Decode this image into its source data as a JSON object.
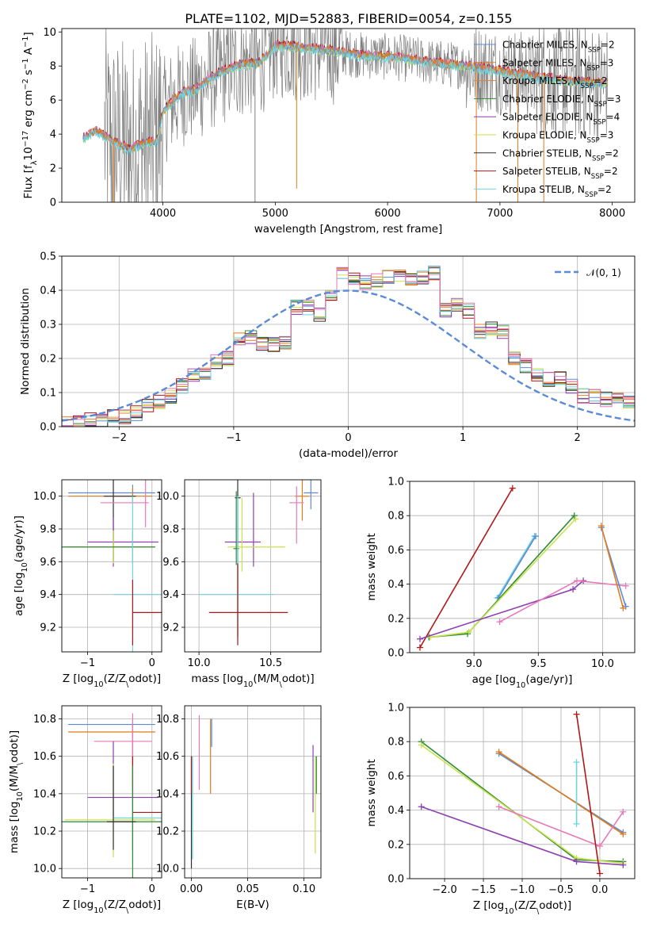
{
  "figure": {
    "title": "PLATE=1102, MJD=52883, FIBERID=0054, z=0.155"
  },
  "series_colors": {
    "chabrier_miles": "#5b8bd6",
    "salpeter_miles": "#e07b1a",
    "kroupa_miles": "#e0852e",
    "chabrier_elodie": "#2f8a3a",
    "salpeter_elodie": "#8e3fb0",
    "kroupa_elodie": "#c8e34a",
    "chabrier_stelib": "#303030",
    "salpeter_stelib": "#b01818",
    "kroupa_stelib": "#6dd4e0",
    "pink": "#e878b8",
    "data": "#808080"
  },
  "chart_data": [
    {
      "id": "spectrum",
      "type": "line",
      "title": "PLATE=1102, MJD=52883, FIBERID=0054, z=0.155",
      "xlabel": "wavelength [Angstrom, rest frame]",
      "ylabel": "Flux [f$_\\lambda$10$^{-17}$ erg cm$^{-2}$ s$^{-1}$ A$^{-1}$]",
      "ylabel_parts": [
        "Flux [f",
        "λ",
        "10",
        "−17",
        " erg cm",
        "−2",
        " s",
        "−1",
        " A",
        "−1",
        "]"
      ],
      "xlim": [
        3100,
        8200
      ],
      "ylim": [
        0,
        10.2
      ],
      "xticks": [
        4000,
        5000,
        6000,
        7000,
        8000
      ],
      "yticks": [
        0,
        2,
        4,
        6,
        8,
        10
      ],
      "grid": false,
      "legend_placement": "top-right",
      "legend": [
        {
          "pre": "Chabrier MILES, N",
          "sub": "SSP",
          "post": "=2",
          "color": "#5b8bd6"
        },
        {
          "pre": "Salpeter MILES, N",
          "sub": "SSP",
          "post": "=3",
          "color": "#e07b1a"
        },
        {
          "pre": "Kroupa MILES, N",
          "sub": "SSP",
          "post": "=2",
          "color": "#e0852e"
        },
        {
          "pre": "Chabrier ELODIE, N",
          "sub": "SSP",
          "post": "=3",
          "color": "#2f8a3a"
        },
        {
          "pre": "Salpeter ELODIE, N",
          "sub": "SSP",
          "post": "=4",
          "color": "#8e3fb0"
        },
        {
          "pre": "Kroupa ELODIE, N",
          "sub": "SSP",
          "post": "=3",
          "color": "#c8e34a"
        },
        {
          "pre": "Chabrier STELIB, N",
          "sub": "SSP",
          "post": "=2",
          "color": "#303030"
        },
        {
          "pre": "Salpeter STELIB, N",
          "sub": "SSP",
          "post": "=2",
          "color": "#b01818"
        },
        {
          "pre": "Kroupa STELIB, N",
          "sub": "SSP",
          "post": "=2",
          "color": "#6dd4e0"
        }
      ],
      "model_trend": {
        "x": [
          3280,
          3400,
          3550,
          3700,
          3850,
          3950,
          4000,
          4100,
          4200,
          4300,
          4400,
          4500,
          4700,
          4860,
          5000,
          5200,
          5500,
          5800,
          6100,
          6400,
          6700,
          7000,
          7300,
          7600,
          7900
        ],
        "y": [
          3.7,
          4.2,
          3.6,
          3.1,
          3.5,
          3.6,
          5.3,
          6.0,
          6.5,
          6.6,
          7.2,
          7.6,
          8.1,
          8.2,
          9.2,
          9.1,
          8.9,
          8.6,
          8.5,
          8.2,
          8.0,
          7.7,
          7.4,
          7.1,
          7.0
        ]
      }
    },
    {
      "id": "residuals",
      "type": "histogram",
      "xlabel": "(data-model)/error",
      "ylabel": "Normed distribution",
      "xlim": [
        -2.5,
        2.5
      ],
      "ylim": [
        0,
        0.5
      ],
      "xticks": [
        -2,
        -1,
        0,
        1,
        2
      ],
      "yticks": [
        0.0,
        0.1,
        0.2,
        0.3,
        0.4,
        0.5
      ],
      "grid": true,
      "legend_placement": "top-right",
      "legend": [
        "$\\mathcal{N}(0,1)$"
      ],
      "gaussian": {
        "name": "N(0,1)",
        "mean": 0,
        "sigma": 1,
        "style": "dashed",
        "color": "#5b8bd6"
      },
      "bin_width": 0.1,
      "bin_start": -2.5,
      "histogram_envelope": [
        0.01,
        0.01,
        0.02,
        0.02,
        0.03,
        0.03,
        0.04,
        0.06,
        0.07,
        0.09,
        0.12,
        0.15,
        0.15,
        0.19,
        0.2,
        0.26,
        0.26,
        0.24,
        0.24,
        0.25,
        0.35,
        0.35,
        0.33,
        0.38,
        0.45,
        0.43,
        0.42,
        0.43,
        0.44,
        0.44,
        0.43,
        0.44,
        0.45,
        0.34,
        0.36,
        0.34,
        0.28,
        0.29,
        0.28,
        0.2,
        0.18,
        0.15,
        0.14,
        0.14,
        0.12,
        0.09,
        0.09,
        0.08,
        0.08,
        0.07
      ]
    },
    {
      "id": "age_vs_Z",
      "type": "errorbar",
      "xlabel": "Z [log$_{10}$($Z/Z_\\odot$)]",
      "ylabel": "age  [log$_{10}$($age/yr$)]",
      "xlim": [
        -1.4,
        0.15
      ],
      "ylim": [
        9.05,
        10.1
      ],
      "xticks": [
        -1,
        0
      ],
      "yticks": [
        9.2,
        9.4,
        9.6,
        9.8,
        10.0
      ],
      "grid": true,
      "points": [
        {
          "x": -0.3,
          "y": 10.02,
          "xerr": [
            1.0,
            0.35
          ],
          "yerr": [
            0.05,
            0.05
          ],
          "color": "#5b8bd6"
        },
        {
          "x": -0.3,
          "y": 10.0,
          "xerr": [
            1.0,
            0.3
          ],
          "yerr": [
            0.05,
            0.05
          ],
          "color": "#e07b1a"
        },
        {
          "x": -0.6,
          "y": 10.0,
          "xerr": [
            0.15,
            0.35
          ],
          "yerr": [
            0.4,
            0.4
          ],
          "color": "#303030"
        },
        {
          "x": -0.6,
          "y": 9.72,
          "xerr": [
            0.4,
            0.7
          ],
          "yerr": [
            0.15,
            0.15
          ],
          "color": "#8e3fb0"
        },
        {
          "x": -0.6,
          "y": 9.69,
          "xerr": [
            0.75,
            0.65
          ],
          "yerr": [
            0.1,
            0.1
          ],
          "color": "#c8e34a"
        },
        {
          "x": -0.3,
          "y": 9.69,
          "xerr": [
            1.1,
            0.35
          ],
          "yerr": [
            0.1,
            0.1
          ],
          "color": "#2f8a3a"
        },
        {
          "x": -0.1,
          "y": 9.96,
          "xerr": [
            0.7,
            0.05
          ],
          "yerr": [
            0.15,
            0.15
          ],
          "color": "#e878b8"
        },
        {
          "x": -0.3,
          "y": 9.4,
          "xerr": [
            0.3,
            0.45
          ],
          "yerr": [
            0.5,
            0.6
          ],
          "color": "#6dd4e0"
        },
        {
          "x": -0.3,
          "y": 9.29,
          "xerr": [
            0.0,
            0.45
          ],
          "yerr": [
            0.2,
            0.2
          ],
          "color": "#b01818"
        }
      ]
    },
    {
      "id": "age_vs_mass",
      "type": "errorbar",
      "xlabel": "mass [log$_{10}$($M/M_\\odot$)]",
      "ylabel": "",
      "xlim": [
        9.9,
        10.85
      ],
      "ylim": [
        9.05,
        10.1
      ],
      "xticks": [
        10.0,
        10.5
      ],
      "yticks": [
        9.2,
        9.4,
        9.6,
        9.8,
        10.0
      ],
      "grid": true,
      "points": [
        {
          "x": 10.78,
          "y": 10.02,
          "xerr": [
            0.05,
            0.05
          ],
          "yerr": [
            0.1,
            0.1
          ],
          "color": "#5b8bd6"
        },
        {
          "x": 10.72,
          "y": 10.0,
          "xerr": [
            0.05,
            0.05
          ],
          "yerr": [
            0.15,
            0.1
          ],
          "color": "#e07b1a"
        },
        {
          "x": 10.68,
          "y": 9.96,
          "xerr": [
            0.05,
            0.05
          ],
          "yerr": [
            0.25,
            0.1
          ],
          "color": "#e878b8"
        },
        {
          "x": 10.27,
          "y": 9.99,
          "xerr": [
            0.02,
            0.02
          ],
          "yerr": [
            0.85,
            0.15
          ],
          "color": "#303030"
        },
        {
          "x": 10.38,
          "y": 9.72,
          "xerr": [
            0.2,
            0.05
          ],
          "yerr": [
            0.15,
            0.3
          ],
          "color": "#8e3fb0"
        },
        {
          "x": 10.3,
          "y": 9.69,
          "xerr": [
            0.1,
            0.3
          ],
          "yerr": [
            0.15,
            0.3
          ],
          "color": "#c8e34a"
        },
        {
          "x": 10.26,
          "y": 9.68,
          "xerr": [
            0.02,
            0.02
          ],
          "yerr": [
            0.1,
            0.35
          ],
          "color": "#2f8a3a"
        },
        {
          "x": 10.27,
          "y": 9.4,
          "xerr": [
            0.27,
            0.25
          ],
          "yerr": [
            0.3,
            0.6
          ],
          "color": "#6dd4e0"
        },
        {
          "x": 10.27,
          "y": 9.29,
          "xerr": [
            0.2,
            0.35
          ],
          "yerr": [
            0.2,
            0.3
          ],
          "color": "#b01818"
        }
      ]
    },
    {
      "id": "weight_vs_age",
      "type": "line",
      "xlabel": "age  [log$_{10}$($age/yr$)]",
      "ylabel": "mass weight",
      "xlim": [
        8.5,
        10.25
      ],
      "ylim": [
        0,
        1
      ],
      "xticks": [
        9.0,
        9.5,
        10.0
      ],
      "yticks": [
        0.0,
        0.2,
        0.4,
        0.6,
        0.8,
        1.0
      ],
      "grid": true,
      "series": [
        {
          "color": "#b01818",
          "x": [
            8.58,
            9.3
          ],
          "y": [
            0.03,
            0.96
          ]
        },
        {
          "color": "#6dd4e0",
          "x": [
            9.18,
            9.47
          ],
          "y": [
            0.32,
            0.68
          ]
        },
        {
          "color": "#5b8bd6",
          "x": [
            9.19,
            9.48
          ],
          "y": [
            0.32,
            0.68
          ]
        },
        {
          "color": "#2f8a3a",
          "x": [
            8.65,
            8.95,
            9.78
          ],
          "y": [
            0.09,
            0.11,
            0.8
          ]
        },
        {
          "color": "#c8e34a",
          "x": [
            8.66,
            8.96,
            9.79
          ],
          "y": [
            0.09,
            0.12,
            0.78
          ]
        },
        {
          "color": "#8e3fb0",
          "x": [
            8.58,
            9.77,
            9.85
          ],
          "y": [
            0.08,
            0.37,
            0.42
          ]
        },
        {
          "color": "#e878b8",
          "x": [
            9.2,
            9.8,
            10.18
          ],
          "y": [
            0.18,
            0.42,
            0.39
          ]
        },
        {
          "color": "#5b8bd6",
          "x": [
            9.99,
            10.18
          ],
          "y": [
            0.73,
            0.27
          ]
        },
        {
          "color": "#e07b1a",
          "x": [
            9.99,
            10.16
          ],
          "y": [
            0.74,
            0.26
          ]
        }
      ]
    },
    {
      "id": "mass_vs_Z",
      "type": "errorbar",
      "xlabel": "Z [log$_{10}$($Z/Z_\\odot$)]",
      "ylabel": "mass [log$_{10}$($M/M_\\odot$)]",
      "xlim": [
        -1.4,
        0.15
      ],
      "ylim": [
        9.95,
        10.87
      ],
      "xticks": [
        -1,
        0
      ],
      "yticks": [
        10.0,
        10.2,
        10.4,
        10.6,
        10.8
      ],
      "grid": true,
      "points": [
        {
          "x": -0.3,
          "y": 10.77,
          "xerr": [
            1.0,
            0.35
          ],
          "yerr": [
            0.35,
            0.03
          ],
          "color": "#5b8bd6"
        },
        {
          "x": -0.3,
          "y": 10.73,
          "xerr": [
            1.0,
            0.35
          ],
          "yerr": [
            0.3,
            0.05
          ],
          "color": "#e07b1a"
        },
        {
          "x": -0.3,
          "y": 10.68,
          "xerr": [
            0.6,
            0.3
          ],
          "yerr": [
            0.1,
            0.15
          ],
          "color": "#e878b8"
        },
        {
          "x": -0.6,
          "y": 10.38,
          "xerr": [
            0.4,
            0.7
          ],
          "yerr": [
            0.1,
            0.3
          ],
          "color": "#8e3fb0"
        },
        {
          "x": -0.3,
          "y": 10.3,
          "xerr": [
            0.0,
            0.45
          ],
          "yerr": [
            0.2,
            0.3
          ],
          "color": "#b01818"
        },
        {
          "x": -0.3,
          "y": 10.27,
          "xerr": [
            0.3,
            0.45
          ],
          "yerr": [
            0.25,
            0.1
          ],
          "color": "#6dd4e0"
        },
        {
          "x": -0.6,
          "y": 10.26,
          "xerr": [
            0.75,
            0.65
          ],
          "yerr": [
            0.2,
            0.3
          ],
          "color": "#c8e34a"
        },
        {
          "x": -0.3,
          "y": 10.25,
          "xerr": [
            1.1,
            0.45
          ],
          "yerr": [
            0.3,
            0.3
          ],
          "color": "#2f8a3a"
        },
        {
          "x": -0.6,
          "y": 10.25,
          "xerr": [
            0.1,
            0.35
          ],
          "yerr": [
            0.15,
            0.3
          ],
          "color": "#303030"
        }
      ]
    },
    {
      "id": "mass_vs_EBV",
      "type": "errorbar",
      "xlabel": "E(B-V)",
      "ylabel": "",
      "xlim": [
        -0.006,
        0.115
      ],
      "ylim": [
        9.95,
        10.87
      ],
      "xticks": [
        0.0,
        0.05,
        0.1
      ],
      "yticks": [
        10.0,
        10.2,
        10.4,
        10.6,
        10.8
      ],
      "grid": true,
      "points": [
        {
          "x": 0.0,
          "y": 10.4,
          "xerr": [
            0,
            0
          ],
          "yerr": [
            0.4,
            0.2
          ],
          "color": "#303030"
        },
        {
          "x": 0.001,
          "y": 10.35,
          "xerr": [
            0,
            0
          ],
          "yerr": [
            0.3,
            0.25
          ],
          "color": "#6dd4e0"
        },
        {
          "x": 0.0,
          "y": 10.5,
          "xerr": [
            0,
            0
          ],
          "yerr": [
            0.1,
            0.1
          ],
          "color": "#b01818"
        },
        {
          "x": 0.007,
          "y": 10.62,
          "xerr": [
            0,
            0
          ],
          "yerr": [
            0.2,
            0.2
          ],
          "color": "#e878b8"
        },
        {
          "x": 0.017,
          "y": 10.6,
          "xerr": [
            0,
            0
          ],
          "yerr": [
            0.2,
            0.2
          ],
          "color": "#e07b1a"
        },
        {
          "x": 0.018,
          "y": 10.75,
          "xerr": [
            0,
            0
          ],
          "yerr": [
            0.1,
            0.05
          ],
          "color": "#5b8bd6"
        },
        {
          "x": 0.108,
          "y": 10.5,
          "xerr": [
            0,
            0
          ],
          "yerr": [
            0.2,
            0.16
          ],
          "color": "#8e3fb0"
        },
        {
          "x": 0.11,
          "y": 10.3,
          "xerr": [
            0,
            0
          ],
          "yerr": [
            0.22,
            0.3
          ],
          "color": "#c8e34a"
        },
        {
          "x": 0.111,
          "y": 10.5,
          "xerr": [
            0,
            0
          ],
          "yerr": [
            0.1,
            0.1
          ],
          "color": "#2f8a3a"
        }
      ]
    },
    {
      "id": "weight_vs_Z",
      "type": "line",
      "xlabel": "Z [log$_{10}$($Z/Z_\\odot$)]",
      "ylabel": "mass weight",
      "xlim": [
        -2.45,
        0.45
      ],
      "ylim": [
        0,
        1
      ],
      "xticks": [
        -2.0,
        -1.5,
        -1.0,
        -0.5,
        0.0
      ],
      "yticks": [
        0.0,
        0.2,
        0.4,
        0.6,
        0.8,
        1.0
      ],
      "grid": true,
      "series": [
        {
          "color": "#2f8a3a",
          "x": [
            -2.3,
            -0.3,
            0.3
          ],
          "y": [
            0.8,
            0.11,
            0.1
          ]
        },
        {
          "color": "#c8e34a",
          "x": [
            -2.3,
            -0.3,
            0.3
          ],
          "y": [
            0.78,
            0.12,
            0.09
          ]
        },
        {
          "color": "#8e3fb0",
          "x": [
            -2.3,
            -0.3,
            0.3
          ],
          "y": [
            0.42,
            0.1,
            0.08
          ]
        },
        {
          "color": "#5b8bd6",
          "x": [
            -1.3,
            0.3
          ],
          "y": [
            0.73,
            0.27
          ]
        },
        {
          "color": "#e07b1a",
          "x": [
            -1.3,
            0.3
          ],
          "y": [
            0.74,
            0.26
          ]
        },
        {
          "color": "#e878b8",
          "x": [
            -1.3,
            0.0,
            0.3
          ],
          "y": [
            0.42,
            0.19,
            0.39
          ]
        },
        {
          "color": "#6dd4e0",
          "x": [
            -0.3,
            -0.3
          ],
          "y": [
            0.32,
            0.68
          ]
        },
        {
          "color": "#b01818",
          "x": [
            -0.3,
            0.0
          ],
          "y": [
            0.96,
            0.03
          ]
        }
      ]
    }
  ]
}
